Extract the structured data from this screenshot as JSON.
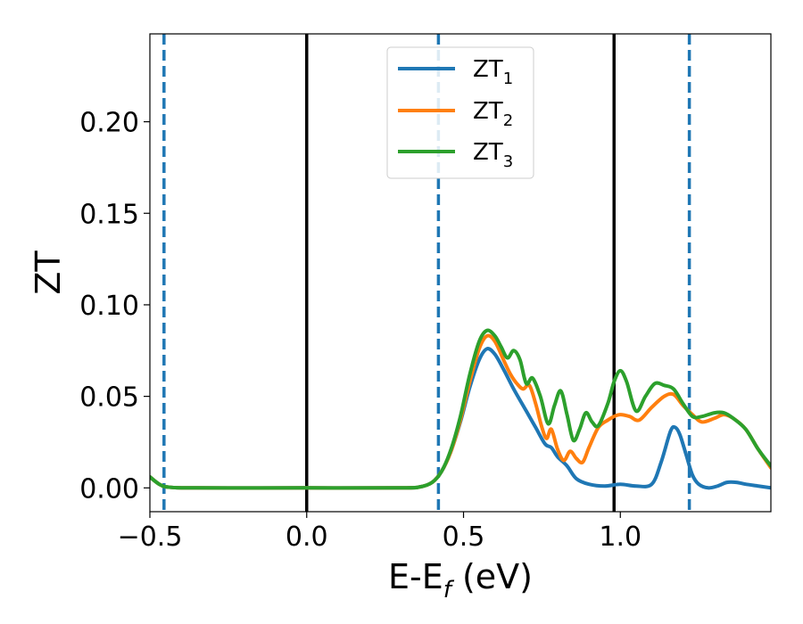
{
  "chart_data": {
    "type": "line",
    "title": "",
    "xlabel": "E-E",
    "xlabel_subscript": "f",
    "xlabel_unit": " (eV)",
    "ylabel": "ZT",
    "xlim": [
      -0.5,
      1.48
    ],
    "ylim": [
      -0.013,
      0.248
    ],
    "xticks": [
      -0.5,
      0.0,
      0.5,
      1.0
    ],
    "xtick_labels": [
      "−0.5",
      "0.0",
      "0.5",
      "1.0"
    ],
    "yticks": [
      0.0,
      0.05,
      0.1,
      0.15,
      0.2
    ],
    "ytick_labels": [
      "0.00",
      "0.05",
      "0.10",
      "0.15",
      "0.20"
    ],
    "grid": false,
    "legend_position": "top-center",
    "vertical_lines": [
      {
        "x": -0.455,
        "style": "dashed",
        "color": "#1f77b4"
      },
      {
        "x": 0.0,
        "style": "solid",
        "color": "#000000"
      },
      {
        "x": 0.42,
        "style": "dashed",
        "color": "#1f77b4"
      },
      {
        "x": 0.98,
        "style": "solid",
        "color": "#000000"
      },
      {
        "x": 1.22,
        "style": "dashed",
        "color": "#1f77b4"
      }
    ],
    "series": [
      {
        "name": "ZT",
        "subscript": "1",
        "color": "#1f77b4",
        "points": [
          [
            -0.5,
            0.006
          ],
          [
            -0.47,
            0.002
          ],
          [
            -0.44,
            0.0004
          ],
          [
            -0.35,
            0.0
          ],
          [
            0.0,
            0.0
          ],
          [
            0.3,
            0.0
          ],
          [
            0.36,
            0.0005
          ],
          [
            0.4,
            0.003
          ],
          [
            0.43,
            0.009
          ],
          [
            0.46,
            0.02
          ],
          [
            0.49,
            0.036
          ],
          [
            0.52,
            0.055
          ],
          [
            0.55,
            0.07
          ],
          [
            0.575,
            0.076
          ],
          [
            0.6,
            0.073
          ],
          [
            0.63,
            0.064
          ],
          [
            0.66,
            0.054
          ],
          [
            0.7,
            0.042
          ],
          [
            0.73,
            0.033
          ],
          [
            0.76,
            0.024
          ],
          [
            0.78,
            0.022
          ],
          [
            0.8,
            0.017
          ],
          [
            0.83,
            0.012
          ],
          [
            0.86,
            0.005
          ],
          [
            0.9,
            0.002
          ],
          [
            0.95,
            0.001
          ],
          [
            1.0,
            0.002
          ],
          [
            1.05,
            0.001
          ],
          [
            1.1,
            0.002
          ],
          [
            1.13,
            0.014
          ],
          [
            1.16,
            0.031
          ],
          [
            1.175,
            0.033
          ],
          [
            1.19,
            0.029
          ],
          [
            1.21,
            0.018
          ],
          [
            1.23,
            0.007
          ],
          [
            1.25,
            0.002
          ],
          [
            1.28,
            0.0
          ],
          [
            1.31,
            0.001
          ],
          [
            1.34,
            0.003
          ],
          [
            1.37,
            0.003
          ],
          [
            1.4,
            0.002
          ],
          [
            1.44,
            0.001
          ],
          [
            1.48,
            0.0
          ]
        ]
      },
      {
        "name": "ZT",
        "subscript": "2",
        "color": "#ff7f0e",
        "points": [
          [
            -0.5,
            0.006
          ],
          [
            -0.47,
            0.002
          ],
          [
            -0.44,
            0.0004
          ],
          [
            -0.35,
            0.0
          ],
          [
            0.0,
            0.0
          ],
          [
            0.3,
            0.0
          ],
          [
            0.36,
            0.0005
          ],
          [
            0.4,
            0.003
          ],
          [
            0.43,
            0.009
          ],
          [
            0.46,
            0.02
          ],
          [
            0.49,
            0.037
          ],
          [
            0.52,
            0.058
          ],
          [
            0.55,
            0.076
          ],
          [
            0.575,
            0.083
          ],
          [
            0.6,
            0.08
          ],
          [
            0.63,
            0.069
          ],
          [
            0.65,
            0.062
          ],
          [
            0.67,
            0.057
          ],
          [
            0.69,
            0.054
          ],
          [
            0.71,
            0.056
          ],
          [
            0.73,
            0.046
          ],
          [
            0.75,
            0.033
          ],
          [
            0.765,
            0.027
          ],
          [
            0.78,
            0.032
          ],
          [
            0.8,
            0.021
          ],
          [
            0.82,
            0.015
          ],
          [
            0.84,
            0.02
          ],
          [
            0.86,
            0.016
          ],
          [
            0.88,
            0.014
          ],
          [
            0.9,
            0.022
          ],
          [
            0.93,
            0.033
          ],
          [
            0.96,
            0.037
          ],
          [
            0.98,
            0.039
          ],
          [
            1.0,
            0.04
          ],
          [
            1.03,
            0.039
          ],
          [
            1.06,
            0.037
          ],
          [
            1.1,
            0.044
          ],
          [
            1.14,
            0.05
          ],
          [
            1.17,
            0.051
          ],
          [
            1.2,
            0.045
          ],
          [
            1.23,
            0.04
          ],
          [
            1.26,
            0.036
          ],
          [
            1.3,
            0.038
          ],
          [
            1.33,
            0.04
          ],
          [
            1.36,
            0.038
          ],
          [
            1.4,
            0.032
          ],
          [
            1.44,
            0.021
          ],
          [
            1.48,
            0.011
          ]
        ]
      },
      {
        "name": "ZT",
        "subscript": "3",
        "color": "#2ca02c",
        "points": [
          [
            -0.5,
            0.006
          ],
          [
            -0.47,
            0.002
          ],
          [
            -0.44,
            0.0004
          ],
          [
            -0.35,
            0.0
          ],
          [
            0.0,
            0.0
          ],
          [
            0.3,
            0.0
          ],
          [
            0.36,
            0.0005
          ],
          [
            0.4,
            0.003
          ],
          [
            0.43,
            0.009
          ],
          [
            0.46,
            0.021
          ],
          [
            0.49,
            0.039
          ],
          [
            0.52,
            0.062
          ],
          [
            0.55,
            0.08
          ],
          [
            0.575,
            0.086
          ],
          [
            0.6,
            0.083
          ],
          [
            0.62,
            0.077
          ],
          [
            0.64,
            0.071
          ],
          [
            0.66,
            0.075
          ],
          [
            0.68,
            0.07
          ],
          [
            0.7,
            0.057
          ],
          [
            0.72,
            0.06
          ],
          [
            0.745,
            0.05
          ],
          [
            0.77,
            0.035
          ],
          [
            0.79,
            0.045
          ],
          [
            0.81,
            0.053
          ],
          [
            0.83,
            0.04
          ],
          [
            0.85,
            0.026
          ],
          [
            0.87,
            0.032
          ],
          [
            0.89,
            0.041
          ],
          [
            0.91,
            0.036
          ],
          [
            0.93,
            0.034
          ],
          [
            0.96,
            0.046
          ],
          [
            0.98,
            0.058
          ],
          [
            1.0,
            0.064
          ],
          [
            1.02,
            0.058
          ],
          [
            1.05,
            0.042
          ],
          [
            1.08,
            0.05
          ],
          [
            1.11,
            0.057
          ],
          [
            1.14,
            0.056
          ],
          [
            1.17,
            0.054
          ],
          [
            1.2,
            0.046
          ],
          [
            1.23,
            0.039
          ],
          [
            1.26,
            0.039
          ],
          [
            1.3,
            0.041
          ],
          [
            1.33,
            0.041
          ],
          [
            1.36,
            0.038
          ],
          [
            1.4,
            0.032
          ],
          [
            1.44,
            0.021
          ],
          [
            1.48,
            0.012
          ]
        ]
      }
    ]
  }
}
